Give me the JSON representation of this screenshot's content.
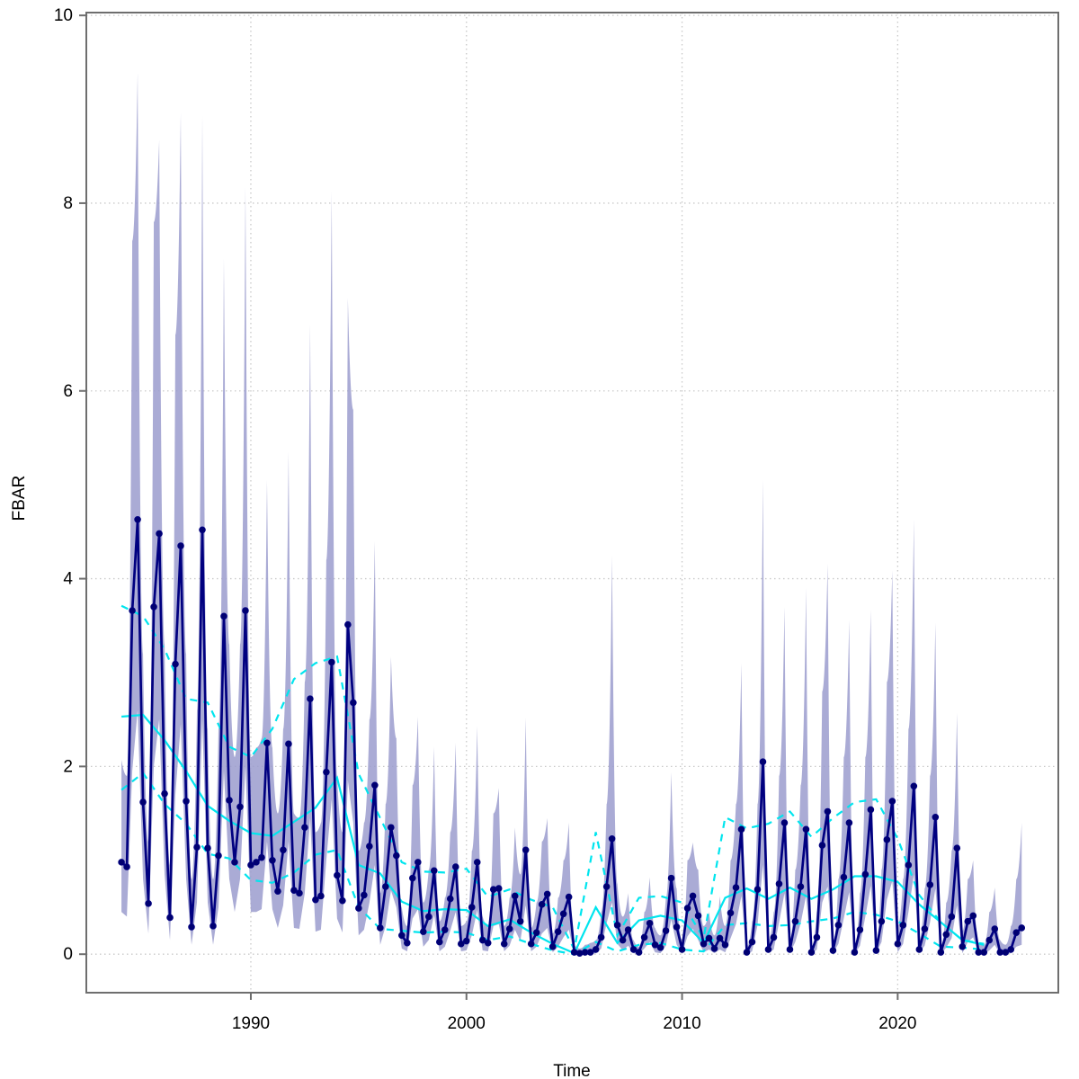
{
  "chart_data": {
    "type": "line",
    "title": "",
    "xlabel": "Time",
    "ylabel": "FBAR",
    "grid": "dotted",
    "legend_position": "none",
    "x_ticks": [
      1990,
      2000,
      2010,
      2020
    ],
    "y_ticks": [
      0,
      2,
      4,
      6,
      8,
      10
    ],
    "x_range": [
      1982.37,
      2027.45
    ],
    "y_range": [
      -0.41,
      10.03
    ],
    "quarter_offsets": [
      0.0,
      0.25,
      0.5,
      0.75
    ],
    "fbar_quarterly": [
      {
        "year": 1984,
        "est": [
          0.98,
          0.93,
          3.66,
          4.63
        ],
        "lo": [
          0.45,
          0.4,
          1.95,
          2.6
        ],
        "hi": [
          2.07,
          1.9,
          7.6,
          9.39
        ]
      },
      {
        "year": 1985,
        "est": [
          1.62,
          0.54,
          3.7,
          4.48
        ],
        "lo": [
          0.8,
          0.22,
          2.0,
          2.5
        ],
        "hi": [
          3.2,
          1.2,
          7.8,
          8.67
        ]
      },
      {
        "year": 1986,
        "est": [
          1.71,
          0.39,
          3.09,
          4.35
        ],
        "lo": [
          0.85,
          0.15,
          1.7,
          2.45
        ],
        "hi": [
          3.3,
          0.95,
          6.6,
          8.96
        ]
      },
      {
        "year": 1987,
        "est": [
          1.63,
          0.29,
          1.14,
          4.52
        ],
        "lo": [
          0.8,
          0.1,
          0.55,
          2.5
        ],
        "hi": [
          3.2,
          0.8,
          2.6,
          8.93
        ]
      },
      {
        "year": 1988,
        "est": [
          1.13,
          0.3,
          1.05,
          3.6
        ],
        "lo": [
          0.55,
          0.1,
          0.5,
          1.95
        ],
        "hi": [
          2.4,
          0.8,
          2.4,
          7.41
        ]
      },
      {
        "year": 1989,
        "est": [
          1.64,
          0.98,
          1.57,
          3.66
        ],
        "lo": [
          0.8,
          0.45,
          0.8,
          2.0
        ],
        "hi": [
          3.3,
          2.1,
          3.3,
          8.18
        ]
      },
      {
        "year": 1990,
        "est": [
          0.95,
          0.98,
          1.03,
          2.25
        ],
        "lo": [
          0.45,
          0.45,
          0.48,
          1.2
        ],
        "hi": [
          2.1,
          2.2,
          2.3,
          5.05
        ]
      },
      {
        "year": 1991,
        "est": [
          1.0,
          0.67,
          1.11,
          2.24
        ],
        "lo": [
          0.48,
          0.28,
          0.52,
          1.2
        ],
        "hi": [
          2.2,
          1.5,
          2.4,
          5.35
        ]
      },
      {
        "year": 1992,
        "est": [
          0.68,
          0.65,
          1.35,
          2.72
        ],
        "lo": [
          0.28,
          0.27,
          0.65,
          1.45
        ],
        "hi": [
          1.5,
          1.45,
          2.9,
          6.71
        ]
      },
      {
        "year": 1993,
        "est": [
          0.58,
          0.62,
          1.94,
          3.11
        ],
        "lo": [
          0.24,
          0.26,
          1.0,
          1.65
        ],
        "hi": [
          1.3,
          1.4,
          4.2,
          8.13
        ]
      },
      {
        "year": 1994,
        "est": [
          0.84,
          0.57,
          3.51,
          2.68
        ],
        "lo": [
          0.38,
          0.23,
          1.85,
          1.4
        ],
        "hi": [
          1.9,
          1.3,
          6.99,
          5.8
        ]
      },
      {
        "year": 1995,
        "est": [
          0.49,
          0.63,
          1.15,
          1.8
        ],
        "lo": [
          0.2,
          0.26,
          0.55,
          0.95
        ],
        "hi": [
          1.1,
          1.4,
          2.5,
          4.4
        ]
      },
      {
        "year": 1996,
        "est": [
          0.28,
          0.72,
          1.35,
          1.05
        ],
        "lo": [
          0.1,
          0.3,
          0.68,
          0.5
        ],
        "hi": [
          0.65,
          1.6,
          3.17,
          2.3
        ]
      },
      {
        "year": 1997,
        "est": [
          0.2,
          0.12,
          0.81,
          0.98
        ],
        "lo": [
          0.06,
          0.03,
          0.38,
          0.48
        ],
        "hi": [
          0.5,
          0.3,
          1.8,
          2.53
        ]
      },
      {
        "year": 1998,
        "est": [
          0.24,
          0.4,
          0.89,
          0.13
        ],
        "lo": [
          0.08,
          0.15,
          0.42,
          0.03
        ],
        "hi": [
          0.55,
          0.9,
          2.21,
          0.35
        ]
      },
      {
        "year": 1999,
        "est": [
          0.26,
          0.59,
          0.93,
          0.11
        ],
        "lo": [
          0.08,
          0.25,
          0.45,
          0.03
        ],
        "hi": [
          0.6,
          1.3,
          2.25,
          0.3
        ]
      },
      {
        "year": 2000,
        "est": [
          0.14,
          0.5,
          0.98,
          0.15
        ],
        "lo": [
          0.04,
          0.2,
          0.47,
          0.04
        ],
        "hi": [
          0.35,
          1.1,
          2.43,
          0.4
        ]
      },
      {
        "year": 2001,
        "est": [
          0.12,
          0.69,
          0.7,
          0.11
        ],
        "lo": [
          0.03,
          0.3,
          0.32,
          0.03
        ],
        "hi": [
          0.3,
          1.5,
          1.77,
          0.3
        ]
      },
      {
        "year": 2002,
        "est": [
          0.27,
          0.62,
          0.35,
          1.11
        ],
        "lo": [
          0.09,
          0.26,
          0.14,
          0.52
        ],
        "hi": [
          0.6,
          1.35,
          0.85,
          2.52
        ]
      },
      {
        "year": 2003,
        "est": [
          0.11,
          0.23,
          0.53,
          0.64
        ],
        "lo": [
          0.03,
          0.08,
          0.22,
          0.28
        ],
        "hi": [
          0.28,
          0.55,
          1.2,
          1.45
        ]
      },
      {
        "year": 2004,
        "est": [
          0.08,
          0.24,
          0.43,
          0.61
        ],
        "lo": [
          0.02,
          0.08,
          0.18,
          0.26
        ],
        "hi": [
          0.22,
          0.6,
          1.0,
          1.4
        ]
      },
      {
        "year": 2005,
        "est": [
          0.02,
          0.01,
          0.02,
          0.02
        ],
        "lo": [
          0.0,
          0.0,
          0.0,
          0.0
        ],
        "hi": [
          0.1,
          0.06,
          0.1,
          0.12
        ]
      },
      {
        "year": 2006,
        "est": [
          0.05,
          0.18,
          0.72,
          1.23
        ],
        "lo": [
          0.01,
          0.06,
          0.33,
          0.55
        ],
        "hi": [
          0.15,
          0.45,
          1.6,
          4.25
        ]
      },
      {
        "year": 2007,
        "est": [
          0.31,
          0.15,
          0.26,
          0.05
        ],
        "lo": [
          0.11,
          0.04,
          0.09,
          0.01
        ],
        "hi": [
          0.75,
          0.4,
          0.65,
          0.15
        ]
      },
      {
        "year": 2008,
        "est": [
          0.02,
          0.18,
          0.33,
          0.1
        ],
        "lo": [
          0.0,
          0.06,
          0.13,
          0.02
        ],
        "hi": [
          0.08,
          0.45,
          0.82,
          0.28
        ]
      },
      {
        "year": 2009,
        "est": [
          0.07,
          0.25,
          0.81,
          0.29
        ],
        "lo": [
          0.01,
          0.09,
          0.37,
          0.1
        ],
        "hi": [
          0.2,
          0.6,
          1.94,
          0.7
        ]
      },
      {
        "year": 2010,
        "est": [
          0.05,
          0.49,
          0.62,
          0.41
        ],
        "lo": [
          0.01,
          0.19,
          0.27,
          0.15
        ],
        "hi": [
          0.15,
          1.0,
          1.19,
          0.9
        ]
      },
      {
        "year": 2011,
        "est": [
          0.11,
          0.17,
          0.06,
          0.17
        ],
        "lo": [
          0.02,
          0.05,
          0.01,
          0.05
        ],
        "hi": [
          0.3,
          0.45,
          0.2,
          0.62
        ]
      },
      {
        "year": 2012,
        "est": [
          0.1,
          0.44,
          0.71,
          1.33
        ],
        "lo": [
          0.02,
          0.17,
          0.32,
          0.62
        ],
        "hi": [
          0.3,
          1.0,
          1.6,
          3.1
        ]
      },
      {
        "year": 2013,
        "est": [
          0.02,
          0.13,
          0.69,
          2.05
        ],
        "lo": [
          0.0,
          0.03,
          0.31,
          0.95
        ],
        "hi": [
          0.08,
          0.35,
          1.6,
          5.05
        ]
      },
      {
        "year": 2014,
        "est": [
          0.05,
          0.18,
          0.75,
          1.4
        ],
        "lo": [
          0.01,
          0.05,
          0.34,
          0.65
        ],
        "hi": [
          0.15,
          0.45,
          1.9,
          3.7
        ]
      },
      {
        "year": 2015,
        "est": [
          0.05,
          0.35,
          0.72,
          1.33
        ],
        "lo": [
          0.01,
          0.13,
          0.33,
          0.62
        ],
        "hi": [
          0.15,
          0.9,
          1.8,
          3.9
        ]
      },
      {
        "year": 2016,
        "est": [
          0.02,
          0.18,
          1.16,
          1.52
        ],
        "lo": [
          0.0,
          0.05,
          0.55,
          0.72
        ],
        "hi": [
          0.08,
          0.45,
          2.8,
          4.16
        ]
      },
      {
        "year": 2017,
        "est": [
          0.04,
          0.31,
          0.82,
          1.4
        ],
        "lo": [
          0.01,
          0.11,
          0.38,
          0.66
        ],
        "hi": [
          0.12,
          0.8,
          2.1,
          3.56
        ]
      },
      {
        "year": 2018,
        "est": [
          0.02,
          0.26,
          0.85,
          1.54
        ],
        "lo": [
          0.0,
          0.09,
          0.4,
          0.73
        ],
        "hi": [
          0.08,
          0.65,
          2.1,
          3.67
        ]
      },
      {
        "year": 2019,
        "est": [
          0.04,
          0.35,
          1.22,
          1.63
        ],
        "lo": [
          0.01,
          0.13,
          0.58,
          0.78
        ],
        "hi": [
          0.12,
          0.9,
          2.9,
          4.09
        ]
      },
      {
        "year": 2020,
        "est": [
          0.11,
          0.31,
          0.95,
          1.79
        ],
        "lo": [
          0.02,
          0.11,
          0.45,
          0.85
        ],
        "hi": [
          0.3,
          0.8,
          2.4,
          4.63
        ]
      },
      {
        "year": 2021,
        "est": [
          0.05,
          0.27,
          0.74,
          1.46
        ],
        "lo": [
          0.01,
          0.09,
          0.34,
          0.7
        ],
        "hi": [
          0.15,
          0.7,
          1.9,
          3.53
        ]
      },
      {
        "year": 2022,
        "est": [
          0.02,
          0.21,
          0.4,
          1.13
        ],
        "lo": [
          0.0,
          0.07,
          0.17,
          0.52
        ],
        "hi": [
          0.08,
          0.55,
          1.1,
          2.57
        ]
      },
      {
        "year": 2023,
        "est": [
          0.08,
          0.35,
          0.41,
          0.02
        ],
        "lo": [
          0.01,
          0.13,
          0.18,
          0.0
        ],
        "hi": [
          0.25,
          0.8,
          1.0,
          0.1
        ]
      },
      {
        "year": 2024,
        "est": [
          0.02,
          0.15,
          0.27,
          0.02
        ],
        "lo": [
          0.0,
          0.04,
          0.1,
          0.0
        ],
        "hi": [
          0.1,
          0.45,
          0.71,
          0.15
        ]
      },
      {
        "year": 2025,
        "est": [
          0.02,
          0.05,
          0.23,
          0.28
        ],
        "lo": [
          0.0,
          0.01,
          0.08,
          0.1
        ],
        "hi": [
          0.1,
          0.3,
          0.8,
          1.4
        ]
      }
    ],
    "cyan_annual": {
      "start_year": 1984,
      "mid": [
        2.53,
        2.55,
        2.28,
        1.95,
        1.58,
        1.42,
        1.29,
        1.26,
        1.41,
        1.56,
        1.88,
        0.95,
        0.86,
        0.56,
        0.46,
        0.48,
        0.47,
        0.3,
        0.37,
        0.23,
        0.11,
        0.01,
        0.5,
        0.12,
        0.36,
        0.41,
        0.36,
        0.12,
        0.6,
        0.7,
        0.59,
        0.71,
        0.59,
        0.69,
        0.83,
        0.83,
        0.77,
        0.53,
        0.34,
        0.15,
        0.1
      ],
      "upper": [
        3.71,
        3.6,
        3.25,
        2.72,
        2.68,
        2.21,
        2.1,
        2.4,
        2.93,
        3.1,
        3.17,
        1.92,
        1.45,
        0.98,
        0.88,
        0.87,
        0.91,
        0.61,
        0.69,
        0.58,
        0.5,
        0.05,
        1.3,
        0.2,
        0.6,
        0.62,
        0.55,
        0.17,
        1.46,
        1.34,
        1.39,
        1.52,
        1.25,
        1.45,
        1.62,
        1.65,
        1.23,
        0.63,
        0.34,
        0.15,
        0.11
      ],
      "lower": [
        1.75,
        1.93,
        1.6,
        1.39,
        1.07,
        1.02,
        0.79,
        0.76,
        0.87,
        1.06,
        1.11,
        0.5,
        0.27,
        0.25,
        0.23,
        0.24,
        0.23,
        0.15,
        0.19,
        0.11,
        0.04,
        0.0,
        0.13,
        0.03,
        0.1,
        0.12,
        0.05,
        0.03,
        0.31,
        0.33,
        0.3,
        0.31,
        0.35,
        0.38,
        0.45,
        0.42,
        0.35,
        0.22,
        0.08,
        0.07,
        0.05
      ]
    },
    "colors": {
      "fbar_line": "#000080",
      "fbar_point": "#000070",
      "band_fill": "#9b9cce",
      "cyan_line": "#00e5ee",
      "grid": "#c9c9c9",
      "box": "#6e6e6e",
      "tick_label": "#000000"
    }
  }
}
